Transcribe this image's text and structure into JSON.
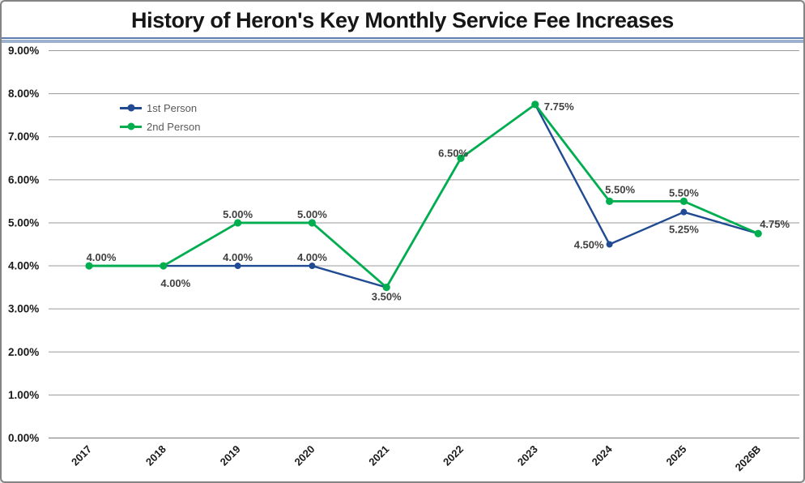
{
  "chart": {
    "title": "History of Heron's Key Monthly Service Fee Increases"
  },
  "styles": {
    "background": "#FFFFFF",
    "frame_border": "#848484",
    "title_color": "#161616",
    "title_rule_dark": "#5C7DAD",
    "title_rule_light": "#9DB2CE",
    "grid_color": "#9A9A9A",
    "baseline_color": "#8C8C8C",
    "tick_label_color": "#1A1A1A",
    "data_label_color": "#404040",
    "legend_text_color": "#595959",
    "series_blue": "#204A92",
    "series_green": "#00AE50"
  },
  "chart_data": {
    "type": "line",
    "title": "History of Heron's Key Monthly Service Fee Increases",
    "xlabel": "",
    "ylabel": "",
    "grid": "horizontal",
    "legend_position": "inside-top-left",
    "categories": [
      "2017",
      "2018",
      "2019",
      "2020",
      "2021",
      "2022",
      "2023",
      "2024",
      "2025",
      "2026B"
    ],
    "ylim": [
      0,
      9
    ],
    "yticks": [
      {
        "value": 0,
        "label": "0.00%"
      },
      {
        "value": 1,
        "label": "1.00%"
      },
      {
        "value": 2,
        "label": "2.00%"
      },
      {
        "value": 3,
        "label": "3.00%"
      },
      {
        "value": 4,
        "label": "4.00%"
      },
      {
        "value": 5,
        "label": "5.00%"
      },
      {
        "value": 6,
        "label": "6.00%"
      },
      {
        "value": 7,
        "label": "7.00%"
      },
      {
        "value": 8,
        "label": "8.00%"
      },
      {
        "value": 9,
        "label": "9.00%"
      }
    ],
    "series": [
      {
        "name": "1st Person",
        "color": "#204A92",
        "marker_radius": 4,
        "line_width": 2.4,
        "values": [
          4.0,
          4.0,
          4.0,
          4.0,
          3.5,
          6.5,
          7.75,
          4.5,
          5.25,
          4.75
        ],
        "labels": [
          null,
          null,
          {
            "text": "4.00%",
            "pos": "above"
          },
          {
            "text": "4.00%",
            "pos": "above"
          },
          null,
          null,
          null,
          {
            "text": "4.50%",
            "pos": "left"
          },
          {
            "text": "5.25%",
            "pos": "below",
            "dy": 10
          },
          null
        ]
      },
      {
        "name": "2nd Person",
        "color": "#00AE50",
        "marker_radius": 4.6,
        "line_width": 2.8,
        "values": [
          4.0,
          4.0,
          5.0,
          5.0,
          3.5,
          6.5,
          7.75,
          5.5,
          5.5,
          4.75
        ],
        "labels": [
          {
            "text": "4.00%",
            "pos": "above",
            "dx": 15
          },
          {
            "text": "4.00%",
            "pos": "below",
            "dx": 15,
            "dy": 10
          },
          {
            "text": "5.00%",
            "pos": "above"
          },
          {
            "text": "5.00%",
            "pos": "above"
          },
          {
            "text": "3.50%",
            "pos": "below"
          },
          {
            "text": "6.50%",
            "pos": "left",
            "dx": 16,
            "dy": -7
          },
          {
            "text": "7.75%",
            "pos": "right",
            "dy": 2
          },
          {
            "text": "5.50%",
            "pos": "above",
            "dx": 13,
            "dy": -4
          },
          {
            "text": "5.50%",
            "pos": "above"
          },
          {
            "text": "4.75%",
            "pos": "right",
            "dx": -9,
            "dy": -12
          }
        ]
      }
    ]
  }
}
